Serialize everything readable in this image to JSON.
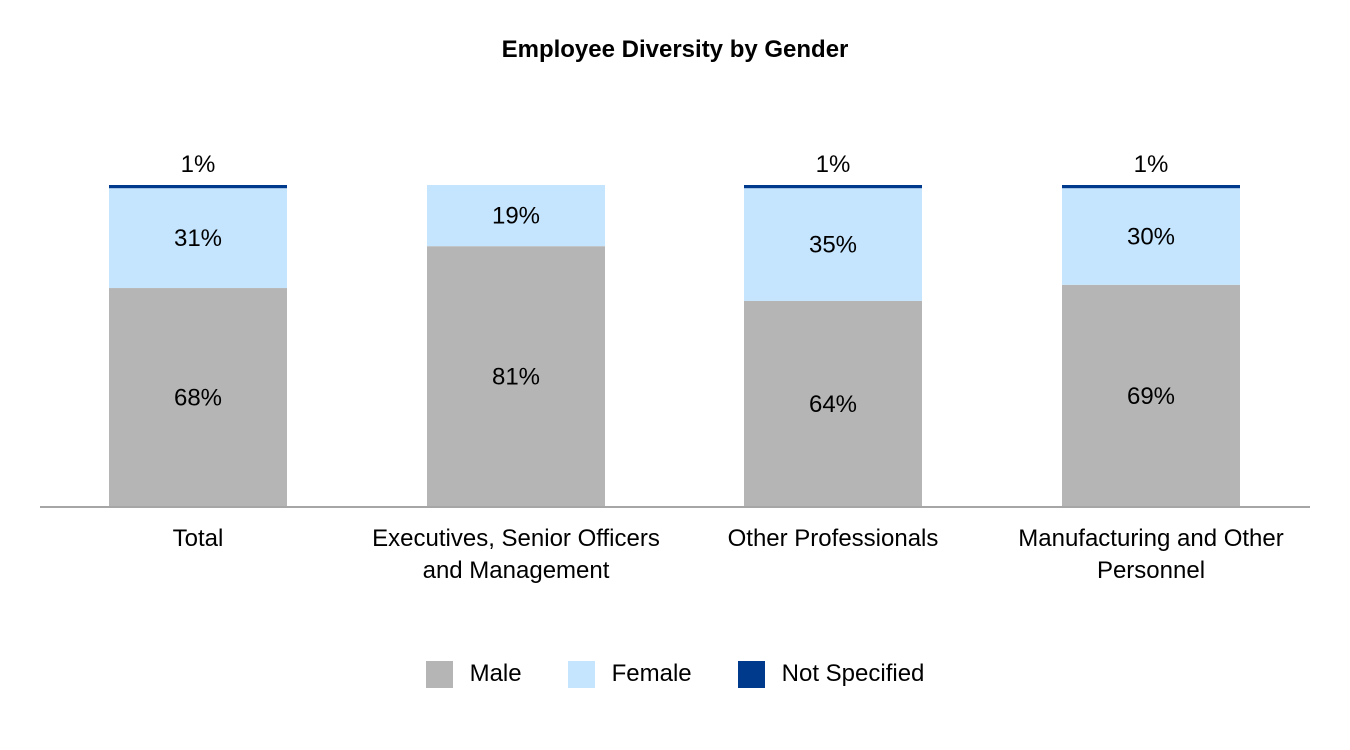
{
  "chart_data": {
    "type": "bar",
    "stacked": true,
    "title": "Employee Diversity by Gender",
    "categories": [
      "Total",
      "Executives, Senior Officers and Management",
      "Other Professionals",
      "Manufacturing and Other Personnel"
    ],
    "series": [
      {
        "name": "Male",
        "color": "#b5b5b5",
        "values": [
          68,
          81,
          64,
          69
        ],
        "labels": [
          "68%",
          "81%",
          "64%",
          "69%"
        ]
      },
      {
        "name": "Female",
        "color": "#c5e4fd",
        "values": [
          31,
          19,
          35,
          30
        ],
        "labels": [
          "31%",
          "19%",
          "35%",
          "30%"
        ]
      },
      {
        "name": "Not Specified",
        "color": "#003a8c",
        "values": [
          1,
          0,
          1,
          1
        ],
        "labels": [
          "1%",
          "",
          "1%",
          "1%"
        ]
      }
    ],
    "ylim": [
      0,
      100
    ],
    "xlabel": "",
    "ylabel": "",
    "legend_position": "bottom"
  }
}
